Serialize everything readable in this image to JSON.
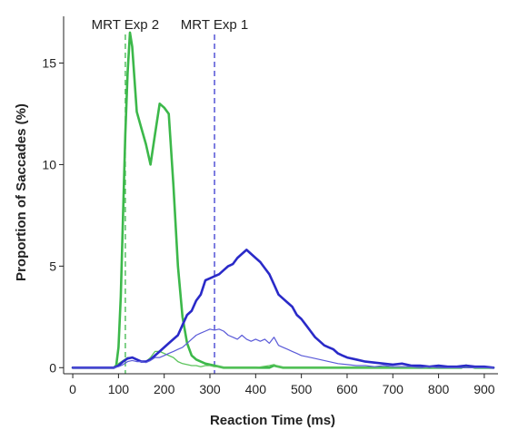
{
  "chart_data": {
    "type": "line",
    "title": "",
    "xlabel": "Reaction Time (ms)",
    "ylabel": "Proportion of Saccades (%)",
    "xlim": [
      -20,
      930
    ],
    "ylim": [
      -0.3,
      17.3
    ],
    "xticks": [
      0,
      100,
      200,
      300,
      400,
      500,
      600,
      700,
      800,
      900
    ],
    "yticks": [
      0,
      5,
      10,
      15
    ],
    "grid": false,
    "legend": "none",
    "annotations": [
      {
        "label": "MRT Exp 2",
        "x": 115,
        "color": "#3cb84a"
      },
      {
        "label": "MRT Exp 1",
        "x": 310,
        "color": "#3a3ad0"
      }
    ],
    "series": [
      {
        "color": "#3cb84a",
        "width": 2.6,
        "x": [
          0,
          90,
          95,
          100,
          105,
          110,
          115,
          120,
          125,
          130,
          140,
          150,
          160,
          170,
          180,
          190,
          200,
          210,
          220,
          230,
          240,
          250,
          260,
          270,
          280,
          290,
          300,
          310,
          320,
          330,
          340,
          350,
          360,
          370,
          380,
          390,
          400,
          410,
          420,
          430,
          440,
          450,
          460,
          500,
          600,
          700,
          800,
          850,
          860,
          870,
          880,
          900,
          920
        ],
        "y": [
          0,
          0,
          0.1,
          1.0,
          3.5,
          7.5,
          11.5,
          14.5,
          16.5,
          15.8,
          12.6,
          11.8,
          11.0,
          10.0,
          11.5,
          13.0,
          12.8,
          12.5,
          9.0,
          5.0,
          2.5,
          1.2,
          0.6,
          0.4,
          0.3,
          0.2,
          0.15,
          0.1,
          0.05,
          0,
          0,
          0,
          0,
          0,
          0,
          0,
          0,
          0,
          0,
          0,
          0.1,
          0.05,
          0,
          0,
          0,
          0,
          0,
          0,
          0.1,
          0.05,
          0,
          0,
          0
        ]
      },
      {
        "color": "#5cc45c",
        "width": 1.3,
        "x": [
          0,
          90,
          100,
          110,
          120,
          130,
          140,
          150,
          160,
          170,
          180,
          190,
          200,
          210,
          220,
          230,
          240,
          250,
          260,
          270,
          280,
          290,
          300,
          310,
          320,
          330,
          340,
          350,
          400,
          430,
          440,
          450,
          460,
          500,
          600,
          700,
          800,
          920
        ],
        "y": [
          0,
          0,
          0.2,
          0.35,
          0.5,
          0.5,
          0.4,
          0.3,
          0.3,
          0.5,
          0.8,
          0.8,
          0.7,
          0.6,
          0.5,
          0.3,
          0.2,
          0.15,
          0.1,
          0.1,
          0.05,
          0.1,
          0.1,
          0.05,
          0.05,
          0,
          0,
          0,
          0,
          0.1,
          0.15,
          0.05,
          0,
          0,
          0,
          0,
          0,
          0
        ]
      },
      {
        "color": "#2a2ac8",
        "width": 2.6,
        "x": [
          0,
          90,
          100,
          110,
          120,
          130,
          140,
          150,
          160,
          170,
          180,
          190,
          200,
          210,
          220,
          230,
          240,
          250,
          260,
          270,
          280,
          290,
          300,
          310,
          320,
          330,
          340,
          350,
          360,
          370,
          380,
          390,
          400,
          410,
          420,
          430,
          440,
          450,
          460,
          470,
          480,
          490,
          500,
          510,
          520,
          530,
          540,
          550,
          560,
          570,
          580,
          590,
          600,
          620,
          640,
          660,
          680,
          700,
          720,
          740,
          760,
          780,
          800,
          820,
          840,
          860,
          880,
          900,
          920
        ],
        "y": [
          0,
          0,
          0.1,
          0.3,
          0.45,
          0.5,
          0.4,
          0.3,
          0.3,
          0.4,
          0.6,
          0.8,
          1.0,
          1.2,
          1.4,
          1.6,
          2.1,
          2.6,
          2.8,
          3.3,
          3.6,
          4.3,
          4.4,
          4.5,
          4.6,
          4.8,
          5.0,
          5.1,
          5.4,
          5.6,
          5.8,
          5.6,
          5.4,
          5.2,
          4.9,
          4.6,
          4.1,
          3.6,
          3.4,
          3.2,
          3.0,
          2.6,
          2.4,
          2.1,
          1.8,
          1.5,
          1.3,
          1.1,
          1.0,
          0.9,
          0.7,
          0.6,
          0.5,
          0.4,
          0.3,
          0.25,
          0.2,
          0.15,
          0.2,
          0.1,
          0.1,
          0.05,
          0.1,
          0.05,
          0.05,
          0.1,
          0.05,
          0.05,
          0
        ]
      },
      {
        "color": "#5a5ad8",
        "width": 1.2,
        "x": [
          0,
          90,
          100,
          110,
          120,
          130,
          140,
          150,
          160,
          170,
          180,
          190,
          200,
          210,
          220,
          230,
          240,
          250,
          260,
          270,
          280,
          290,
          300,
          310,
          320,
          330,
          340,
          350,
          360,
          370,
          380,
          390,
          400,
          410,
          420,
          430,
          440,
          450,
          460,
          470,
          480,
          490,
          500,
          520,
          540,
          560,
          580,
          600,
          620,
          640,
          660,
          680,
          700,
          720,
          740,
          760,
          780,
          800,
          850,
          900,
          920
        ],
        "y": [
          0,
          0,
          0.05,
          0.15,
          0.3,
          0.35,
          0.3,
          0.3,
          0.25,
          0.35,
          0.5,
          0.5,
          0.6,
          0.7,
          0.8,
          0.9,
          1.0,
          1.2,
          1.4,
          1.6,
          1.7,
          1.8,
          1.9,
          1.85,
          1.9,
          1.8,
          1.6,
          1.5,
          1.4,
          1.6,
          1.4,
          1.3,
          1.4,
          1.3,
          1.4,
          1.2,
          1.5,
          1.1,
          1.0,
          0.9,
          0.8,
          0.7,
          0.6,
          0.5,
          0.4,
          0.3,
          0.2,
          0.15,
          0.1,
          0.1,
          0.05,
          0.1,
          0.05,
          0.05,
          0.05,
          0,
          0.05,
          0,
          0,
          0,
          0
        ]
      }
    ]
  }
}
